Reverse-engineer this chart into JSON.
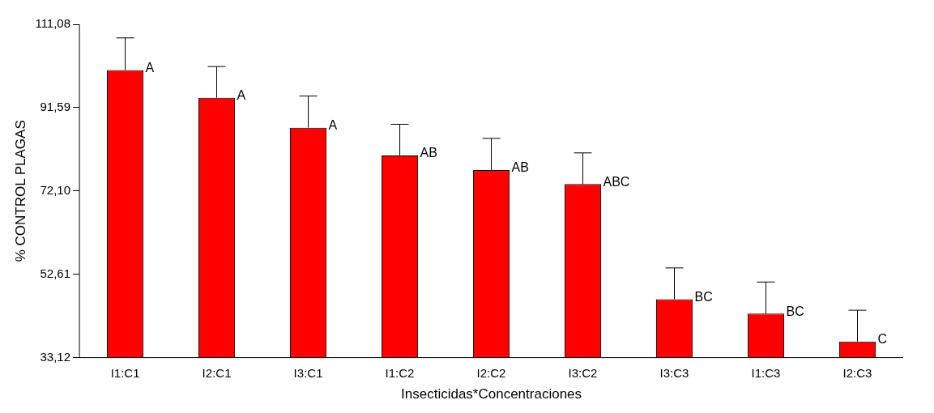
{
  "chart_data": {
    "type": "bar",
    "xlabel": "Insecticidas*Concentraciones",
    "ylabel": "% CONTROL PLAGAS",
    "categories": [
      "I1:C1",
      "I2:C1",
      "I3:C1",
      "I1:C2",
      "I2:C2",
      "I3:C2",
      "I3:C3",
      "I1:C3",
      "I2:C3"
    ],
    "values": [
      100.4,
      93.9,
      86.9,
      80.4,
      77.0,
      73.7,
      46.8,
      43.4,
      36.9
    ],
    "errors": [
      [
        100.4,
        107.9
      ],
      [
        93.9,
        101.2
      ],
      [
        86.9,
        94.3
      ],
      [
        80.4,
        87.7
      ],
      [
        77.0,
        84.4
      ],
      [
        73.7,
        81.0
      ],
      [
        46.8,
        54.1
      ],
      [
        43.4,
        50.8
      ],
      [
        36.9,
        44.2
      ]
    ],
    "color": "#ff0000",
    "ylim": [
      33.12,
      111.08
    ],
    "yticks": [
      {
        "value": 33.12,
        "label": "33,12"
      },
      {
        "value": 52.61,
        "label": "52,61"
      },
      {
        "value": 72.1,
        "label": "72,10"
      },
      {
        "value": 91.59,
        "label": "91,59"
      },
      {
        "value": 111.08,
        "label": "111,08"
      }
    ],
    "grid": false,
    "legend": false,
    "annotations": [
      {
        "text": "A",
        "x": "I1:C1",
        "y": 100.4
      },
      {
        "text": "A",
        "x": "I2:C1",
        "y": 93.9
      },
      {
        "text": "A",
        "x": "I3:C1",
        "y": 86.9
      },
      {
        "text": "AB",
        "x": "I1:C2",
        "y": 80.4
      },
      {
        "text": "AB",
        "x": "I2:C2",
        "y": 77.0
      },
      {
        "text": "ABC",
        "x": "I3:C2",
        "y": 73.7
      },
      {
        "text": "BC",
        "x": "I3:C3",
        "y": 46.8
      },
      {
        "text": "BC",
        "x": "I1:C3",
        "y": 43.4
      },
      {
        "text": "C",
        "x": "I2:C3",
        "y": 36.9
      }
    ]
  }
}
